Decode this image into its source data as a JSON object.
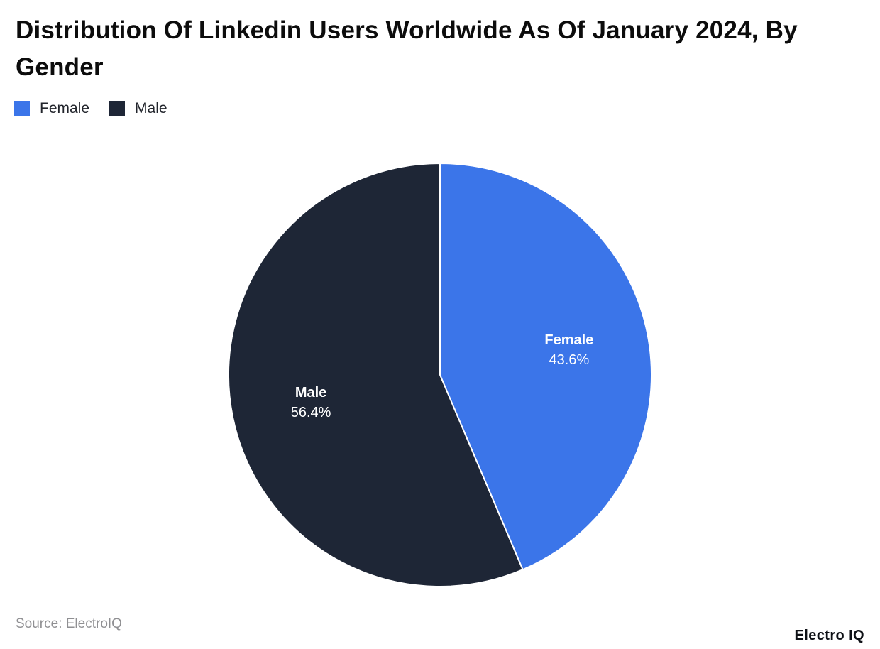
{
  "title": "Distribution Of Linkedin Users Worldwide As Of January 2024, By Gender",
  "legend": {
    "items": [
      {
        "label": "Female",
        "color": "#3B75E9"
      },
      {
        "label": "Male",
        "color": "#1E2636"
      }
    ]
  },
  "chart_data": {
    "type": "pie",
    "title": "Distribution Of Linkedin Users Worldwide As Of January 2024, By Gender",
    "slices": [
      {
        "label": "Female",
        "value": 43.6,
        "display": "43.6%",
        "color": "#3B75E9"
      },
      {
        "label": "Male",
        "value": 56.4,
        "display": "56.4%",
        "color": "#1E2636"
      }
    ],
    "start_angle_deg": 0,
    "direction": "clockwise",
    "legend_position": "top-left",
    "slice_border_color": "#ffffff"
  },
  "footer": {
    "source": "Source: ElectroIQ",
    "brand": "Electro IQ"
  }
}
